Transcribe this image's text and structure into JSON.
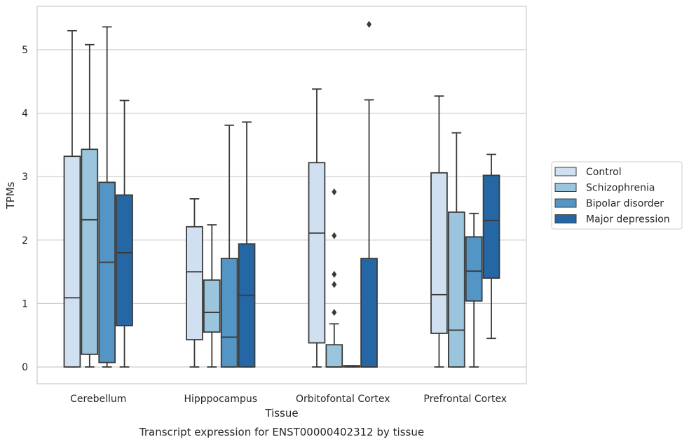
{
  "chart_data": {
    "type": "boxplot",
    "title": "",
    "caption": "Transcript expression for ENST00000402312 by tissue",
    "xlabel": "Tissue",
    "ylabel": "TPMs",
    "ylim": [
      -0.25,
      5.7
    ],
    "yticks": [
      0,
      1,
      2,
      3,
      4,
      5
    ],
    "grid": "horizontal",
    "legend_position": "right",
    "categories": [
      "Cerebellum",
      "Hipppocampus",
      "Orbitofontal Cortex",
      "Prefrontal Cortex"
    ],
    "series": [
      {
        "name": "Control",
        "color": "#d0e0f0",
        "boxes": [
          {
            "whislo": 0,
            "q1": 0,
            "median": 1.09,
            "q3": 3.32,
            "whishi": 5.3,
            "fliers": []
          },
          {
            "whislo": 0,
            "q1": 0.43,
            "median": 1.5,
            "q3": 2.21,
            "whishi": 2.65,
            "fliers": []
          },
          {
            "whislo": 0,
            "q1": 0.38,
            "median": 2.11,
            "q3": 3.22,
            "whishi": 4.38,
            "fliers": []
          },
          {
            "whislo": 0,
            "q1": 0.53,
            "median": 1.14,
            "q3": 3.06,
            "whishi": 4.27,
            "fliers": []
          }
        ]
      },
      {
        "name": "Schizophrenia",
        "color": "#9ac5dd",
        "boxes": [
          {
            "whislo": 0,
            "q1": 0.2,
            "median": 2.32,
            "q3": 3.43,
            "whishi": 5.08,
            "fliers": []
          },
          {
            "whislo": 0,
            "q1": 0.55,
            "median": 0.86,
            "q3": 1.37,
            "whishi": 2.24,
            "fliers": []
          },
          {
            "whislo": 0,
            "q1": 0,
            "median": 0,
            "q3": 0.35,
            "whishi": 0.68,
            "fliers": [
              2.07,
              1.46,
              2.76,
              1.3,
              0.86
            ]
          },
          {
            "whislo": 0,
            "q1": 0,
            "median": 0.58,
            "q3": 2.44,
            "whishi": 3.69,
            "fliers": []
          }
        ]
      },
      {
        "name": "Bipolar disorder",
        "color": "#5395c5",
        "boxes": [
          {
            "whislo": 0,
            "q1": 0.07,
            "median": 1.65,
            "q3": 2.91,
            "whishi": 5.36,
            "fliers": []
          },
          {
            "whislo": 0,
            "q1": 0,
            "median": 0.47,
            "q3": 1.71,
            "whishi": 3.81,
            "fliers": []
          },
          {
            "whislo": 0,
            "q1": 0,
            "median": 0.01,
            "q3": 0.02,
            "whishi": 0.02,
            "fliers": []
          },
          {
            "whislo": 0,
            "q1": 1.04,
            "median": 1.51,
            "q3": 2.05,
            "whishi": 2.42,
            "fliers": []
          }
        ]
      },
      {
        "name": "Major depression",
        "color": "#2566a4",
        "boxes": [
          {
            "whislo": 0,
            "q1": 0.65,
            "median": 1.8,
            "q3": 2.71,
            "whishi": 4.2,
            "fliers": []
          },
          {
            "whislo": 0,
            "q1": 0,
            "median": 1.13,
            "q3": 1.94,
            "whishi": 3.86,
            "fliers": []
          },
          {
            "whislo": 0,
            "q1": 0,
            "median": 0,
            "q3": 1.71,
            "whishi": 4.21,
            "fliers": [
              5.4
            ]
          },
          {
            "whislo": 0.45,
            "q1": 1.4,
            "median": 2.31,
            "q3": 3.02,
            "whishi": 3.35,
            "fliers": []
          }
        ]
      }
    ]
  }
}
